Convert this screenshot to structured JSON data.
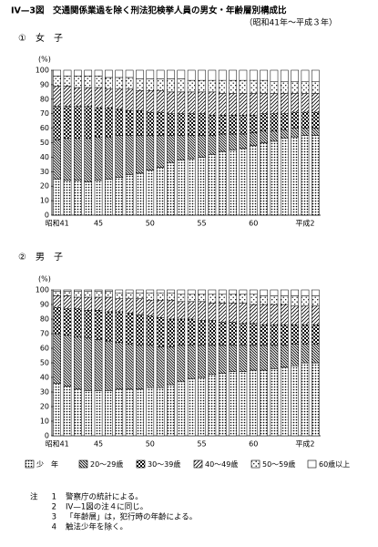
{
  "title": "IV—3図　交通関係業過を除く刑法犯検挙人員の男女・年齢層別構成比",
  "subtitle": "（昭和41年～平成３年）",
  "chart_data": [
    {
      "type": "bar",
      "stacked": true,
      "title": "①　女　子",
      "ylabel": "(%)",
      "categories": [
        "昭和41",
        null,
        null,
        null,
        "45",
        null,
        null,
        null,
        null,
        "50",
        null,
        null,
        null,
        null,
        "55",
        null,
        null,
        null,
        null,
        "60",
        null,
        null,
        null,
        null,
        "平成2",
        null
      ],
      "ylim": [
        0,
        100
      ],
      "yticks": [
        0,
        10,
        20,
        30,
        40,
        50,
        60,
        70,
        80,
        90,
        100
      ],
      "series": [
        {
          "values": [
            25,
            24,
            24,
            23,
            24,
            25,
            26,
            28,
            29,
            31,
            33,
            36,
            38,
            39,
            40,
            42,
            44,
            45,
            46,
            48,
            50,
            51,
            53,
            54,
            55,
            55
          ]
        },
        {
          "values": [
            27,
            29,
            29,
            30,
            30,
            29,
            29,
            27,
            26,
            24,
            22,
            19,
            17,
            16,
            15,
            13,
            12,
            11,
            10,
            9,
            8,
            7,
            6,
            6,
            5,
            5
          ]
        },
        {
          "values": [
            23,
            22,
            22,
            22,
            20,
            20,
            18,
            17,
            17,
            16,
            16,
            15,
            15,
            15,
            15,
            14,
            13,
            13,
            13,
            12,
            12,
            12,
            11,
            11,
            11,
            11
          ]
        },
        {
          "values": [
            14,
            14,
            13,
            13,
            14,
            13,
            14,
            15,
            14,
            15,
            15,
            15,
            15,
            15,
            15,
            16,
            15,
            15,
            15,
            15,
            14,
            14,
            14,
            13,
            13,
            13
          ]
        },
        {
          "values": [
            7,
            7,
            8,
            8,
            8,
            8,
            8,
            8,
            8,
            8,
            8,
            9,
            9,
            8,
            8,
            8,
            9,
            9,
            9,
            9,
            9,
            8,
            8,
            8,
            8,
            8
          ]
        },
        {
          "values": [
            4,
            4,
            4,
            4,
            4,
            5,
            5,
            5,
            6,
            6,
            6,
            6,
            6,
            7,
            7,
            7,
            7,
            7,
            7,
            7,
            7,
            8,
            8,
            8,
            8,
            8
          ]
        }
      ]
    },
    {
      "type": "bar",
      "stacked": true,
      "title": "②　男　子",
      "ylabel": "(%)",
      "categories": [
        "昭和41",
        null,
        null,
        null,
        "45",
        null,
        null,
        null,
        null,
        "50",
        null,
        null,
        null,
        null,
        "55",
        null,
        null,
        null,
        null,
        "60",
        null,
        null,
        null,
        null,
        "平成2",
        null
      ],
      "ylim": [
        0,
        100
      ],
      "yticks": [
        0,
        10,
        20,
        30,
        40,
        50,
        60,
        70,
        80,
        90,
        100
      ],
      "series": [
        {
          "name": "少　年",
          "values": [
            36,
            34,
            32,
            31,
            31,
            31,
            32,
            32,
            32,
            33,
            33,
            35,
            37,
            39,
            40,
            42,
            43,
            44,
            44,
            45,
            45,
            46,
            47,
            48,
            50,
            50
          ]
        },
        {
          "name": "20～29歳",
          "values": [
            34,
            35,
            36,
            36,
            35,
            34,
            32,
            31,
            30,
            29,
            28,
            26,
            25,
            23,
            22,
            20,
            19,
            18,
            18,
            17,
            17,
            16,
            15,
            15,
            13,
            13
          ]
        },
        {
          "name": "30～39歳",
          "values": [
            18,
            18,
            19,
            19,
            20,
            20,
            21,
            21,
            21,
            20,
            20,
            19,
            18,
            18,
            17,
            17,
            16,
            16,
            15,
            15,
            14,
            14,
            14,
            13,
            13,
            13
          ]
        },
        {
          "name": "40～49歳",
          "values": [
            8,
            9,
            8,
            9,
            9,
            10,
            9,
            10,
            11,
            11,
            12,
            13,
            12,
            12,
            13,
            12,
            13,
            13,
            14,
            13,
            14,
            14,
            14,
            13,
            13,
            13
          ]
        },
        {
          "name": "50～59歳",
          "values": [
            3,
            3,
            4,
            4,
            4,
            4,
            4,
            4,
            4,
            5,
            5,
            5,
            5,
            5,
            5,
            6,
            6,
            6,
            6,
            7,
            6,
            6,
            6,
            7,
            7,
            7
          ]
        },
        {
          "name": "60歳以上",
          "values": [
            1,
            1,
            1,
            1,
            1,
            1,
            2,
            2,
            2,
            2,
            2,
            2,
            3,
            3,
            3,
            3,
            3,
            3,
            3,
            3,
            4,
            4,
            4,
            4,
            4,
            4
          ]
        }
      ]
    }
  ],
  "notes": {
    "label": "注",
    "items": [
      {
        "number": "1",
        "text": "警察庁の統計による。"
      },
      {
        "number": "2",
        "text": "IV—1図の注４に同じ。"
      },
      {
        "number": "3",
        "text": "「年齢層」は，犯行時の年齢による。"
      },
      {
        "number": "4",
        "text": "触法少年を除く。"
      }
    ]
  }
}
